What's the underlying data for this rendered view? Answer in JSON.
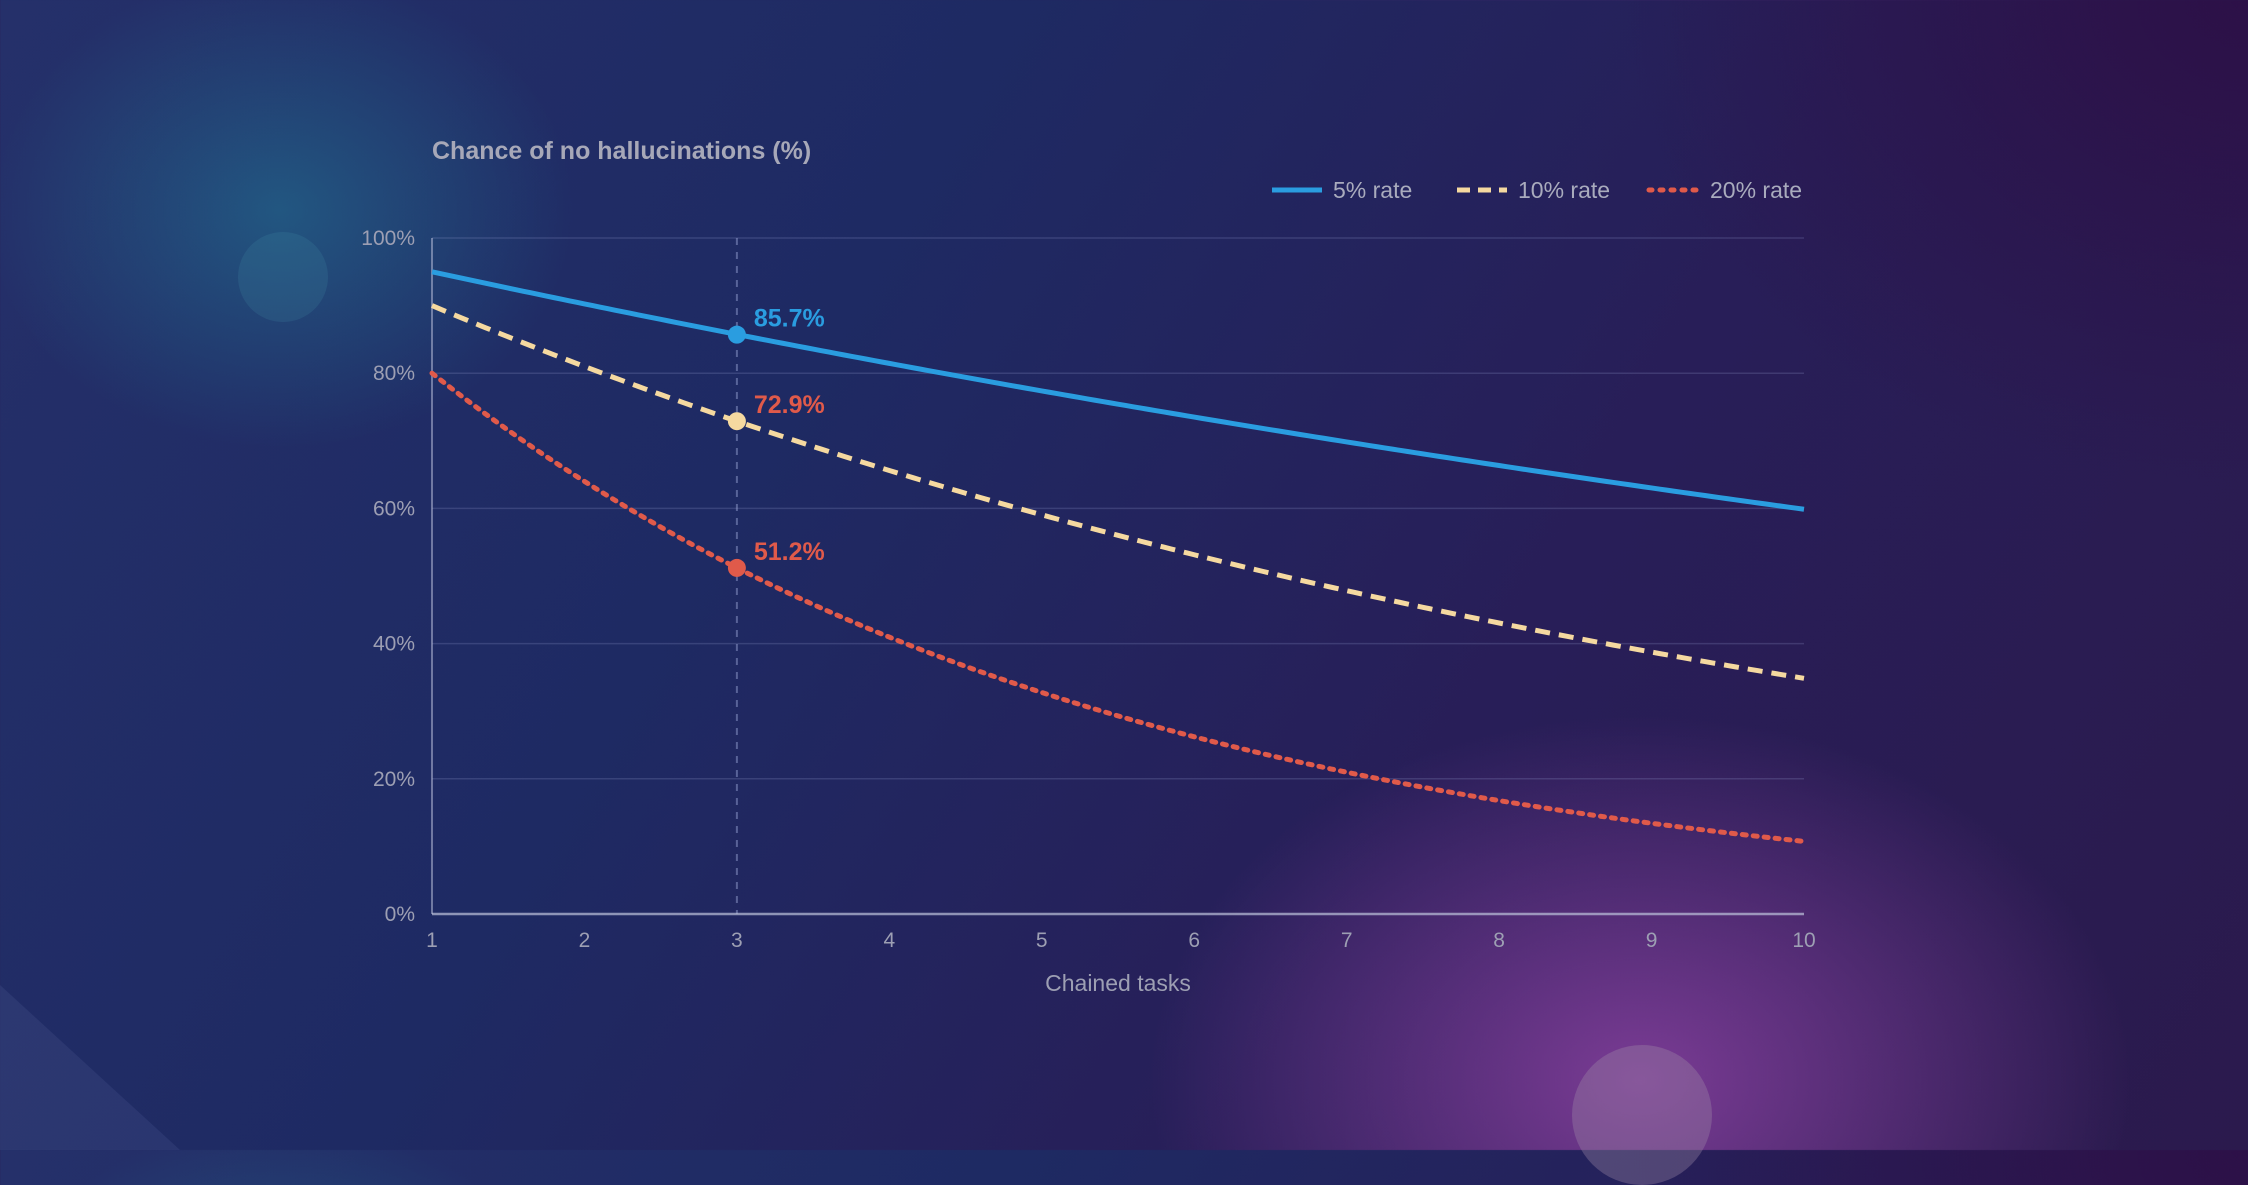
{
  "chart_data": {
    "type": "line",
    "title": "Chance of no hallucinations (%)",
    "xlabel": "Chained tasks",
    "ylabel": "",
    "x": [
      1,
      2,
      3,
      4,
      5,
      6,
      7,
      8,
      9,
      10
    ],
    "xlim": [
      1,
      10
    ],
    "ylim": [
      0,
      100
    ],
    "yticks": [
      "0%",
      "20%",
      "40%",
      "60%",
      "80%",
      "100%"
    ],
    "ytick_values": [
      0,
      20,
      40,
      60,
      80,
      100
    ],
    "xticks": [
      "1",
      "2",
      "3",
      "4",
      "5",
      "6",
      "7",
      "8",
      "9",
      "10"
    ],
    "grid": "horizontal",
    "legend_position": "top-right",
    "highlight_x": 3,
    "series": [
      {
        "name": "5% rate",
        "style": "solid",
        "color": "#2a9de0",
        "values": [
          95.0,
          90.25,
          85.7,
          81.45,
          77.38,
          73.51,
          69.83,
          66.34,
          63.02,
          59.87
        ],
        "highlight_label": "85.7%",
        "label_color": "#2a9de0"
      },
      {
        "name": "10% rate",
        "style": "dashed",
        "color": "#f5d9a0",
        "values": [
          90.0,
          81.0,
          72.9,
          65.61,
          59.05,
          53.14,
          47.83,
          43.05,
          38.74,
          34.87
        ],
        "highlight_label": "72.9%",
        "label_color": "#e05a4a"
      },
      {
        "name": "20% rate",
        "style": "dotted",
        "color": "#e05a4a",
        "values": [
          80.0,
          64.0,
          51.2,
          40.96,
          32.77,
          26.21,
          20.97,
          16.78,
          13.42,
          10.74
        ],
        "highlight_label": "51.2%",
        "label_color": "#e05a4a"
      }
    ]
  }
}
